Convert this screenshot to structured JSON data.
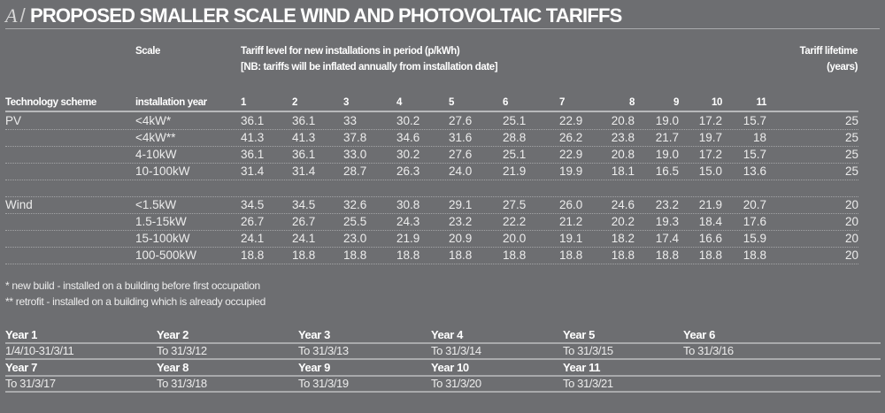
{
  "title": {
    "letter": "A",
    "separator": "/",
    "text": "PROPOSED SMALLER SCALE WIND AND PHOTOVOLTAIC TARIFFS"
  },
  "header": {
    "scale": "Scale",
    "tariff_line1": "Tariff level for new installations in period (p/kWh)",
    "tariff_line2": "[NB: tariffs will be inflated annually from installation date]",
    "lifetime_line1": "Tariff lifetime",
    "lifetime_line2": "(years)",
    "technology": "Technology scheme",
    "installation_year": "installation year",
    "periods": [
      "1",
      "2",
      "3",
      "4",
      "5",
      "6",
      "7",
      "8",
      "9",
      "10",
      "11"
    ]
  },
  "rows": [
    {
      "tech": "PV",
      "scale": "<4kW*",
      "values": [
        "36.1",
        "36.1",
        "33",
        "30.2",
        "27.6",
        "25.1",
        "22.9",
        "20.8",
        "19.0",
        "17.2",
        "15.7"
      ],
      "lifetime": "25"
    },
    {
      "tech": "",
      "scale": "<4kW**",
      "values": [
        "41.3",
        "41.3",
        "37.8",
        "34.6",
        "31.6",
        "28.8",
        "26.2",
        "23.8",
        "21.7",
        "19.7",
        "18"
      ],
      "lifetime": "25"
    },
    {
      "tech": "",
      "scale": "4-10kW",
      "values": [
        "36.1",
        "36.1",
        "33.0",
        "30.2",
        "27.6",
        "25.1",
        "22.9",
        "20.8",
        "19.0",
        "17.2",
        "15.7"
      ],
      "lifetime": "25"
    },
    {
      "tech": "",
      "scale": "10-100kW",
      "values": [
        "31.4",
        "31.4",
        "28.7",
        "26.3",
        "24.0",
        "21.9",
        "19.9",
        "18.1",
        "16.5",
        "15.0",
        "13.6"
      ],
      "lifetime": "25"
    },
    {
      "tech": "",
      "scale": "",
      "values": [
        "",
        "",
        "",
        "",
        "",
        "",
        "",
        "",
        "",
        "",
        ""
      ],
      "lifetime": ""
    },
    {
      "tech": "Wind",
      "scale": "<1.5kW",
      "values": [
        "34.5",
        "34.5",
        "32.6",
        "30.8",
        "29.1",
        "27.5",
        "26.0",
        "24.6",
        "23.2",
        "21.9",
        "20.7"
      ],
      "lifetime": "20"
    },
    {
      "tech": "",
      "scale": "1.5-15kW",
      "values": [
        "26.7",
        "26.7",
        "25.5",
        "24.3",
        "23.2",
        "22.2",
        "21.2",
        "20.2",
        "19.3",
        "18.4",
        "17.6"
      ],
      "lifetime": "20"
    },
    {
      "tech": "",
      "scale": "15-100kW",
      "values": [
        "24.1",
        "24.1",
        "23.0",
        "21.9",
        "20.9",
        "20.0",
        "19.1",
        "18.2",
        "17.4",
        "16.6",
        "15.9"
      ],
      "lifetime": "20"
    },
    {
      "tech": "",
      "scale": "100-500kW",
      "values": [
        "18.8",
        "18.8",
        "18.8",
        "18.8",
        "18.8",
        "18.8",
        "18.8",
        "18.8",
        "18.8",
        "18.8",
        "18.8"
      ],
      "lifetime": "20"
    }
  ],
  "footnotes": [
    "* new build - installed on a building before first occupation",
    "** retrofit - installed on a building which is already occupied"
  ],
  "years": [
    [
      {
        "label": "Year 1",
        "dates": "1/4/10-31/3/11"
      },
      {
        "label": "Year 2",
        "dates": "To 31/3/12"
      },
      {
        "label": "Year 3",
        "dates": "To 31/3/13"
      },
      {
        "label": "Year 4",
        "dates": "To 31/3/14"
      },
      {
        "label": "Year 5",
        "dates": "To 31/3/15"
      },
      {
        "label": "Year 6",
        "dates": "To 31/3/16"
      }
    ],
    [
      {
        "label": "Year 7",
        "dates": "To 31/3/17"
      },
      {
        "label": "Year 8",
        "dates": "To 31/3/18"
      },
      {
        "label": "Year 9",
        "dates": "To 31/3/19"
      },
      {
        "label": "Year 10",
        "dates": "To 31/3/20"
      },
      {
        "label": "Year 11",
        "dates": "To 31/3/21"
      }
    ]
  ]
}
